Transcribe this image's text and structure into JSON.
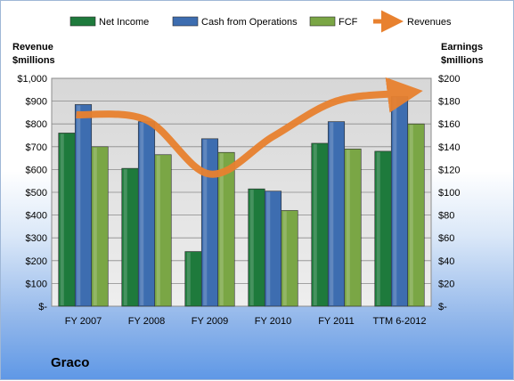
{
  "company": "Graco",
  "chart_data": {
    "type": "bar",
    "categories": [
      "FY 2007",
      "FY 2008",
      "FY 2009",
      "FY 2010",
      "FY 2011",
      "TTM 6-2012"
    ],
    "series": [
      {
        "name": "Net Income",
        "axis": "right",
        "color": "#1e7a3c",
        "values": [
          152,
          121,
          48,
          103,
          143,
          136
        ]
      },
      {
        "name": "Cash from Operations",
        "axis": "right",
        "color": "#3d6db0",
        "values": [
          177,
          162,
          147,
          101,
          162,
          184
        ]
      },
      {
        "name": "FCF",
        "axis": "right",
        "color": "#7aa645",
        "values": [
          140,
          133,
          135,
          84,
          138,
          160
        ]
      },
      {
        "name": "Revenues",
        "axis": "left",
        "type": "line",
        "color": "#e8812f",
        "values": [
          840,
          817,
          580,
          745,
          900,
          935
        ]
      }
    ],
    "left_axis": {
      "title_line1": "Revenue",
      "title_line2": "$millions",
      "ylim": [
        0,
        1000
      ],
      "ticks": [
        "$-",
        "$100",
        "$200",
        "$300",
        "$400",
        "$500",
        "$600",
        "$700",
        "$800",
        "$900",
        "$1,000"
      ]
    },
    "right_axis": {
      "title_line1": "Earnings",
      "title_line2": "$millions",
      "ylim": [
        0,
        200
      ],
      "ticks": [
        "$-",
        "$20",
        "$40",
        "$60",
        "$80",
        "$100",
        "$120",
        "$140",
        "$160",
        "$180",
        "$200"
      ]
    },
    "legend_position": "top",
    "grid": true
  }
}
